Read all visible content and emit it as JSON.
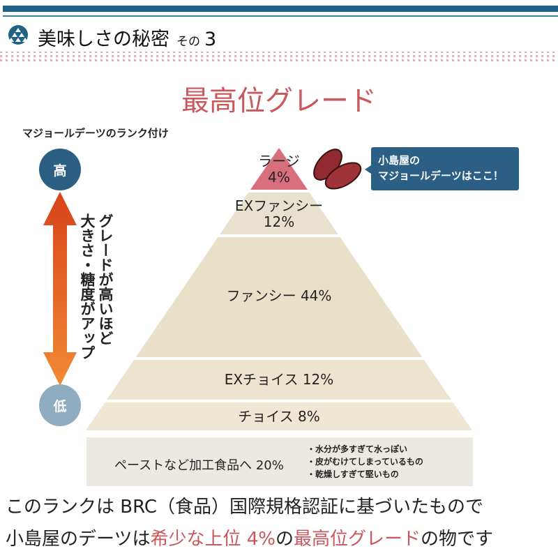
{
  "header": {
    "icon": "kikko-pattern-icon",
    "title": "美味しさの秘密",
    "suffix": "その",
    "number": "3"
  },
  "title": "最高位グレード",
  "rank_label": "マジョールデーツのランク付け",
  "scale": {
    "high": "高",
    "low": "低",
    "caption_line1": "グレードが高いほど",
    "caption_line2": "大きさ・糖度がアップ",
    "arrow_colors": [
      "#d8431a",
      "#f08a34"
    ]
  },
  "pyramid": [
    {
      "name": "ラージ",
      "percent": 4,
      "label_line1": "ラージ",
      "label_line2": "4%",
      "color": "#d86f7c"
    },
    {
      "name": "EXファンシー",
      "percent": 12,
      "label_line1": "EXファンシー",
      "label_line2": "12%",
      "color": "#e8e1cf"
    },
    {
      "name": "ファンシー",
      "percent": 44,
      "label_line1": "ファンシー 44%",
      "color": "#e9e0c9"
    },
    {
      "name": "EXチョイス",
      "percent": 12,
      "label_line1": "EXチョイス 12%",
      "color": "#ece4cf"
    },
    {
      "name": "チョイス",
      "percent": 8,
      "label_line1": "チョイス 8%",
      "color": "#efe7d3"
    }
  ],
  "paste": {
    "label": "ペーストなど加工食品へ 20%",
    "percent": 20,
    "reasons": [
      "・水分が多すぎて水っぽい",
      "・皮がむけてしまっているもの",
      "・乾燥しすぎて堅いもの"
    ]
  },
  "callout": {
    "line1": "小島屋の",
    "line2": "マジョールデーツはここ！"
  },
  "footer": {
    "line1": "このランクは BRC（食品）国際規格認証に基づいたもので",
    "line2_a": "小島屋のデーツは",
    "line2_b": "希少な上位 4%",
    "line2_c": "の",
    "line2_d": "最高位グレード",
    "line2_e": "の物です"
  },
  "colors": {
    "accent_blue": "#1f6286",
    "accent_red": "#c9575c"
  }
}
